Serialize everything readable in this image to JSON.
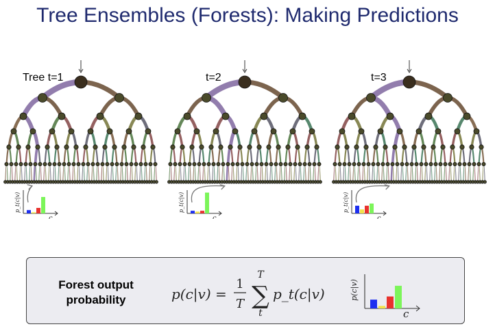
{
  "title": "Tree Ensembles (Forests): Making Predictions",
  "trees": [
    {
      "label": "Tree t=1",
      "path": [
        0,
        0,
        1,
        1
      ],
      "hist": [
        0.15,
        0.05,
        0.25,
        0.75
      ],
      "hist_ylabel": "p_t(c|v)",
      "hist_xlabel": "c"
    },
    {
      "label": "t=2",
      "path": [
        0,
        1,
        1,
        0
      ],
      "hist": [
        0.12,
        0.08,
        0.12,
        0.95
      ],
      "hist_ylabel": "p_t(c|v)",
      "hist_xlabel": "c"
    },
    {
      "label": "t=3",
      "path": [
        0,
        1,
        1,
        0
      ],
      "hist": [
        0.35,
        0.18,
        0.35,
        0.45
      ],
      "hist_ylabel": "p_t(c|v)",
      "hist_xlabel": "c"
    }
  ],
  "output": {
    "label_line1": "Forest output",
    "label_line2": "probability",
    "formula_lhs": "p(c|v) =",
    "formula_frac_num": "1",
    "formula_frac_den": "T",
    "formula_sum_top": "T",
    "formula_sum_bottom": "t",
    "formula_term": "p_t(c|v)",
    "hist": [
      0.28,
      0.08,
      0.38,
      0.72
    ],
    "hist_ylabel": "p(c|v)",
    "hist_xlabel": "c"
  },
  "colors": {
    "title": "#1f2a6e",
    "bar_colors": [
      "#1d2ff0",
      "#f2e24a",
      "#e8322d",
      "#7cf55a"
    ],
    "path": "#8c76a9",
    "branch": "#5b3d22",
    "node": "#4a4a2a"
  }
}
